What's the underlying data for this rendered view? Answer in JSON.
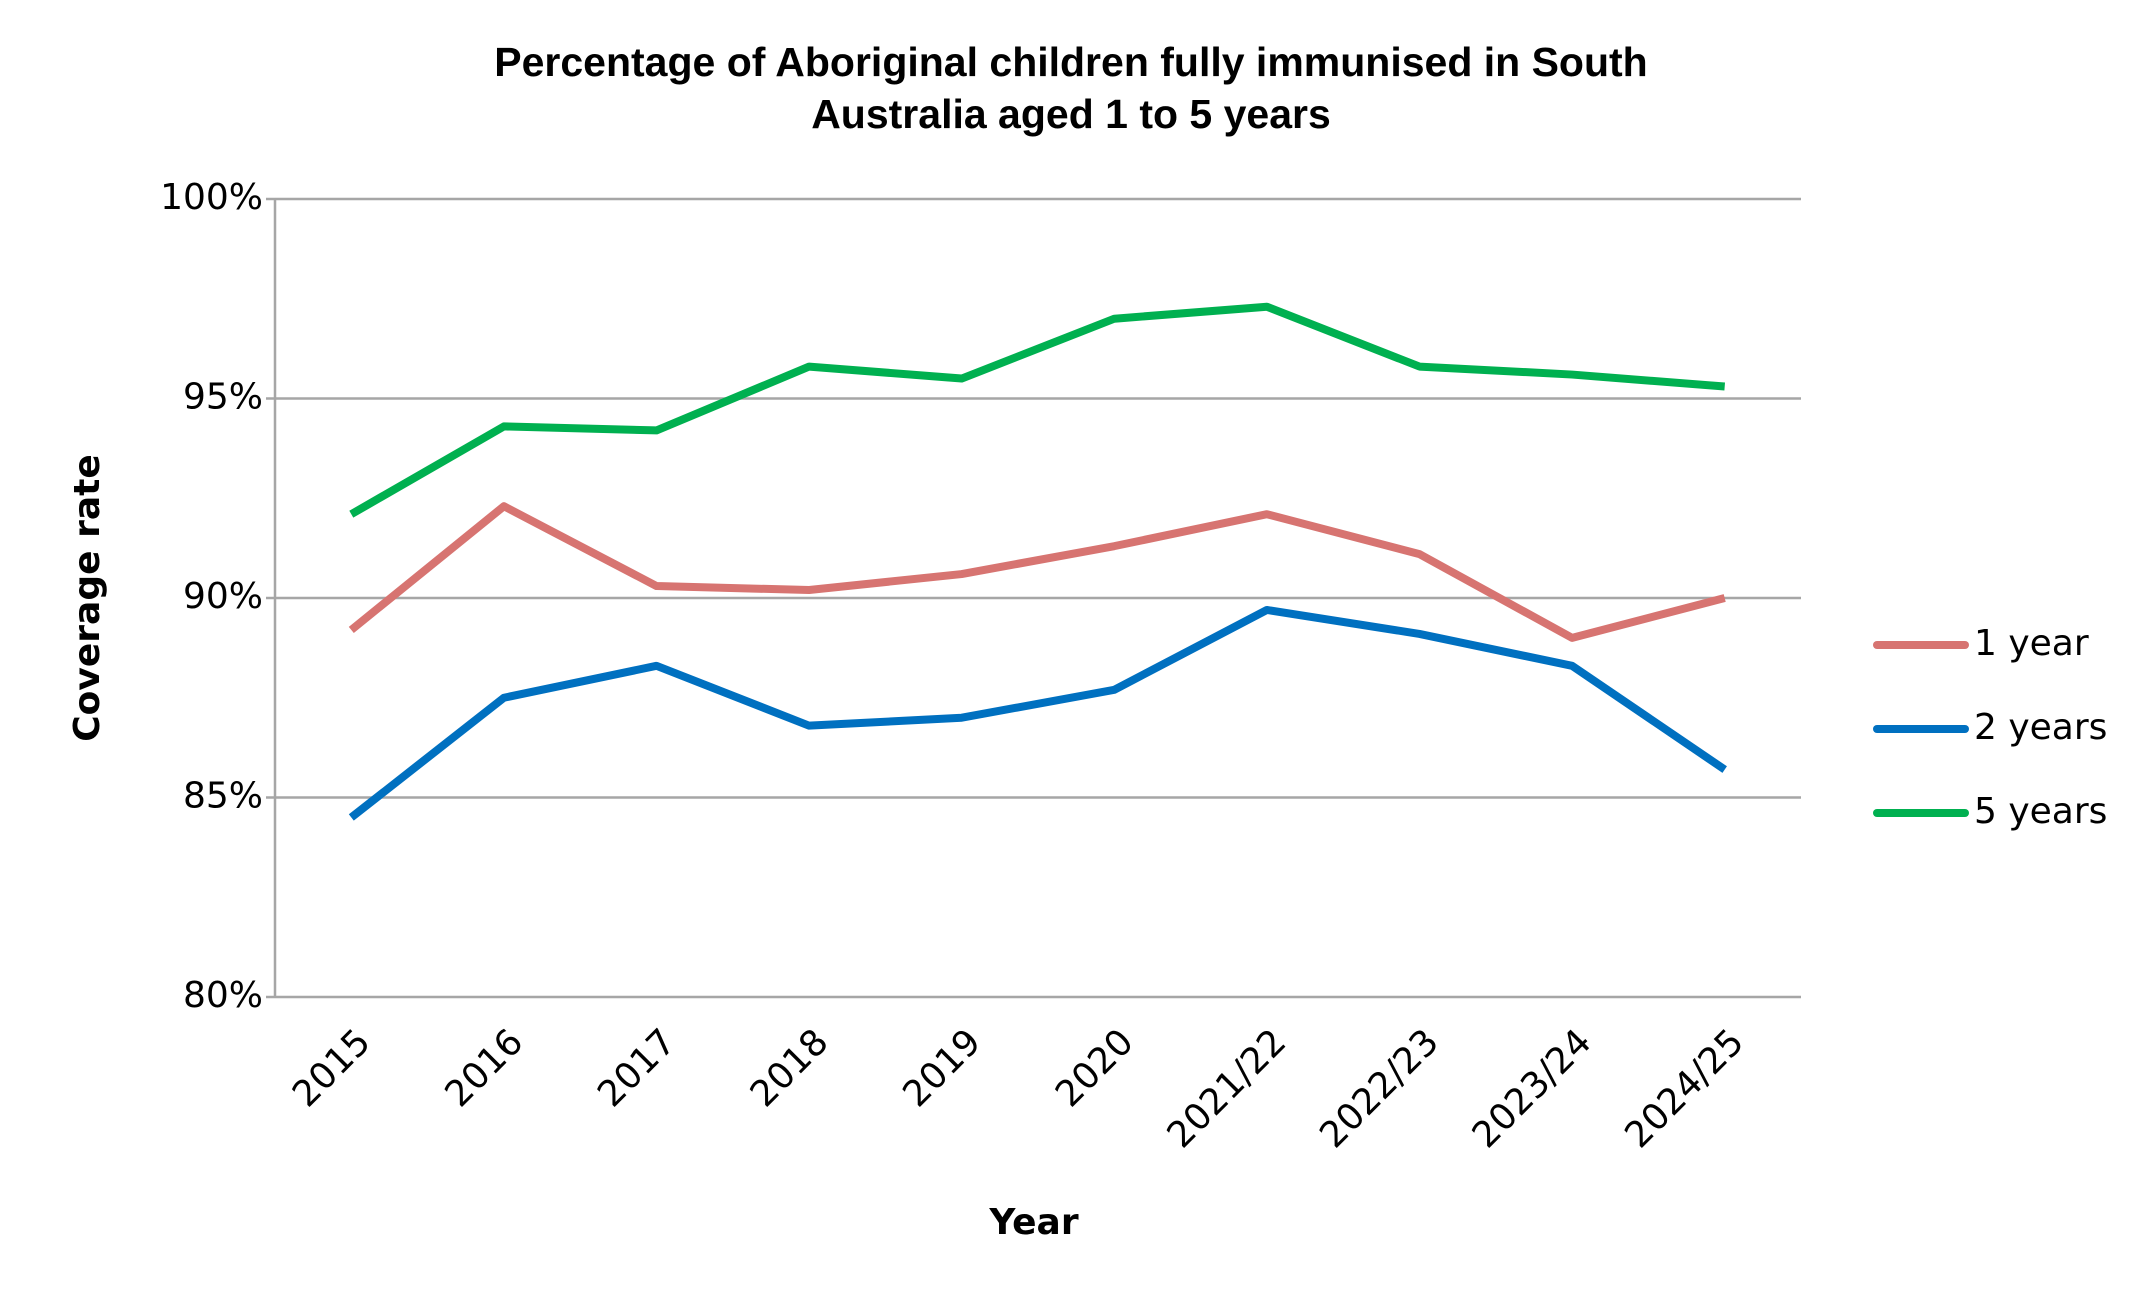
{
  "chart_data": {
    "type": "line",
    "title": "Percentage of Aboriginal children fully immunised in South Australia aged 1 to 5 years",
    "x_label": "Year",
    "y_label": "Coverage rate",
    "categories": [
      "2015",
      "2016",
      "2017",
      "2018",
      "2019",
      "2020",
      "2021/22",
      "2022/23",
      "2023/24",
      "2024/25"
    ],
    "series": [
      {
        "name": "1 year",
        "color": "#d77471",
        "values": [
          89.2,
          92.3,
          90.3,
          90.2,
          90.6,
          91.3,
          92.1,
          91.1,
          89.0,
          90.0
        ]
      },
      {
        "name": "2 years",
        "color": "#0070c0",
        "values": [
          84.5,
          87.5,
          88.3,
          86.8,
          87.0,
          87.7,
          89.7,
          89.1,
          88.3,
          85.7
        ]
      },
      {
        "name": "5 years",
        "color": "#00b050",
        "values": [
          92.1,
          94.3,
          94.2,
          95.8,
          95.5,
          97.0,
          97.3,
          95.8,
          95.6,
          95.3
        ]
      }
    ],
    "ylim": [
      80,
      100
    ],
    "yticks": [
      {
        "value": 80,
        "label": "80%"
      },
      {
        "value": 85,
        "label": "85%"
      },
      {
        "value": 90,
        "label": "90%"
      },
      {
        "value": 95,
        "label": "95%"
      },
      {
        "value": 100,
        "label": "100%"
      }
    ],
    "grid": true,
    "legend": "right"
  }
}
